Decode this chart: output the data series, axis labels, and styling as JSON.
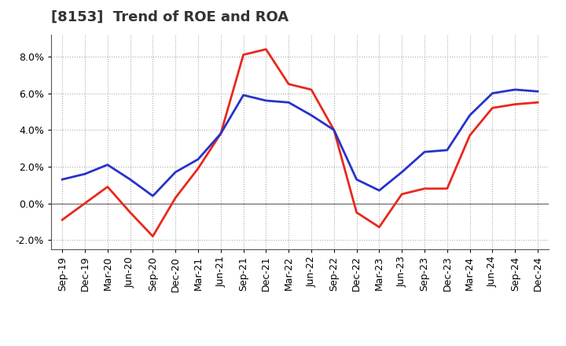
{
  "title": "[8153]  Trend of ROE and ROA",
  "x_labels": [
    "Sep-19",
    "Dec-19",
    "Mar-20",
    "Jun-20",
    "Sep-20",
    "Dec-20",
    "Mar-21",
    "Jun-21",
    "Sep-21",
    "Dec-21",
    "Mar-22",
    "Jun-22",
    "Sep-22",
    "Dec-22",
    "Mar-23",
    "Jun-23",
    "Sep-23",
    "Dec-23",
    "Mar-24",
    "Jun-24",
    "Sep-24",
    "Dec-24"
  ],
  "roe": [
    -0.009,
    0.0,
    0.009,
    -0.005,
    -0.018,
    0.003,
    0.019,
    0.038,
    0.081,
    0.084,
    0.065,
    0.062,
    0.04,
    -0.005,
    -0.013,
    0.005,
    0.008,
    0.008,
    0.037,
    0.052,
    0.054,
    0.055
  ],
  "roa": [
    0.013,
    0.016,
    0.021,
    0.013,
    0.004,
    0.017,
    0.024,
    0.038,
    0.059,
    0.056,
    0.055,
    0.048,
    0.04,
    0.013,
    0.007,
    0.017,
    0.028,
    0.029,
    0.048,
    0.06,
    0.062,
    0.061
  ],
  "roe_color": "#e8281e",
  "roa_color": "#2832c8",
  "background_color": "#ffffff",
  "grid_color": "#aaaaaa",
  "ylim": [
    -0.025,
    0.092
  ],
  "yticks": [
    -0.02,
    0.0,
    0.02,
    0.04,
    0.06,
    0.08
  ],
  "line_width": 2.0,
  "title_fontsize": 13,
  "tick_fontsize": 9,
  "legend_fontsize": 10
}
